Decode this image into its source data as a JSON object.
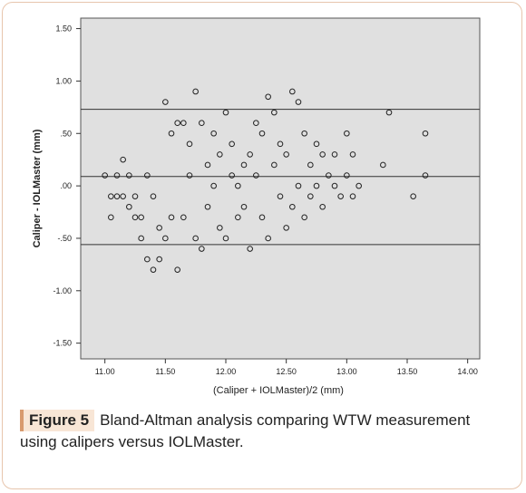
{
  "figure": {
    "label": "Figure 5",
    "caption": "Bland-Altman analysis comparing WTW measurement using calipers versus IOLMaster."
  },
  "colors": {
    "plot_bg": "#e0e0e0",
    "frame_border": "#e7c5ad",
    "caption_tag_bg": "#f8e6d6",
    "marker": "#222222"
  },
  "chart_data": {
    "type": "scatter",
    "xlabel": "(Caliper + IOLMaster)/2 (mm)",
    "ylabel": "Caliper - IOLMaster (mm)",
    "xlim": [
      10.8,
      14.1
    ],
    "ylim": [
      -1.65,
      1.6
    ],
    "x_ticks": [
      11.0,
      11.5,
      12.0,
      12.5,
      13.0,
      13.5,
      14.0
    ],
    "x_tick_labels": [
      "11.00",
      "11.50",
      "12.00",
      "12.50",
      "13.00",
      "13.50",
      "14.00"
    ],
    "y_ticks": [
      1.5,
      1.0,
      0.5,
      0.0,
      -0.5,
      -1.0,
      -1.5
    ],
    "y_tick_labels": [
      "1.50",
      "1.00",
      ".50",
      ".00",
      "-.50",
      "-1.00",
      "-1.50"
    ],
    "reference_lines": [
      {
        "name": "upper limit of agreement",
        "y": 0.73
      },
      {
        "name": "mean difference",
        "y": 0.09
      },
      {
        "name": "lower limit of agreement",
        "y": -0.56
      }
    ],
    "grid": false,
    "marker": "open-circle",
    "series": [
      {
        "points": [
          [
            11.0,
            0.1
          ],
          [
            11.05,
            -0.1
          ],
          [
            11.05,
            -0.3
          ],
          [
            11.1,
            -0.1
          ],
          [
            11.1,
            0.1
          ],
          [
            11.15,
            0.25
          ],
          [
            11.15,
            -0.1
          ],
          [
            11.2,
            -0.2
          ],
          [
            11.2,
            0.1
          ],
          [
            11.25,
            -0.3
          ],
          [
            11.25,
            -0.1
          ],
          [
            11.3,
            -0.5
          ],
          [
            11.3,
            -0.3
          ],
          [
            11.35,
            -0.7
          ],
          [
            11.35,
            0.1
          ],
          [
            11.4,
            -0.8
          ],
          [
            11.4,
            -0.1
          ],
          [
            11.45,
            -0.7
          ],
          [
            11.45,
            -0.4
          ],
          [
            11.5,
            0.8
          ],
          [
            11.5,
            -0.5
          ],
          [
            11.55,
            0.5
          ],
          [
            11.55,
            -0.3
          ],
          [
            11.6,
            0.6
          ],
          [
            11.6,
            -0.8
          ],
          [
            11.65,
            0.6
          ],
          [
            11.65,
            -0.3
          ],
          [
            11.7,
            0.4
          ],
          [
            11.7,
            0.1
          ],
          [
            11.75,
            0.9
          ],
          [
            11.75,
            -0.5
          ],
          [
            11.8,
            -0.6
          ],
          [
            11.8,
            0.6
          ],
          [
            11.85,
            0.2
          ],
          [
            11.85,
            -0.2
          ],
          [
            11.9,
            0.5
          ],
          [
            11.9,
            0.0
          ],
          [
            11.95,
            -0.4
          ],
          [
            11.95,
            0.3
          ],
          [
            12.0,
            0.7
          ],
          [
            12.0,
            -0.5
          ],
          [
            12.05,
            0.4
          ],
          [
            12.05,
            0.1
          ],
          [
            12.1,
            -0.3
          ],
          [
            12.1,
            0.0
          ],
          [
            12.15,
            0.2
          ],
          [
            12.15,
            -0.2
          ],
          [
            12.2,
            -0.6
          ],
          [
            12.2,
            0.3
          ],
          [
            12.25,
            0.6
          ],
          [
            12.25,
            0.1
          ],
          [
            12.3,
            0.5
          ],
          [
            12.3,
            -0.3
          ],
          [
            12.35,
            0.85
          ],
          [
            12.35,
            -0.5
          ],
          [
            12.4,
            0.7
          ],
          [
            12.4,
            0.2
          ],
          [
            12.45,
            -0.1
          ],
          [
            12.45,
            0.4
          ],
          [
            12.5,
            0.3
          ],
          [
            12.5,
            -0.4
          ],
          [
            12.55,
            0.9
          ],
          [
            12.55,
            -0.2
          ],
          [
            12.6,
            0.8
          ],
          [
            12.6,
            0.0
          ],
          [
            12.65,
            0.5
          ],
          [
            12.65,
            -0.3
          ],
          [
            12.7,
            0.2
          ],
          [
            12.7,
            -0.1
          ],
          [
            12.75,
            0.4
          ],
          [
            12.75,
            0.0
          ],
          [
            12.8,
            0.3
          ],
          [
            12.8,
            -0.2
          ],
          [
            12.85,
            0.1
          ],
          [
            12.9,
            0.3
          ],
          [
            12.9,
            0.0
          ],
          [
            12.95,
            -0.1
          ],
          [
            13.0,
            0.5
          ],
          [
            13.0,
            0.1
          ],
          [
            13.05,
            0.3
          ],
          [
            13.05,
            -0.1
          ],
          [
            13.1,
            0.0
          ],
          [
            13.3,
            0.2
          ],
          [
            13.35,
            0.7
          ],
          [
            13.55,
            -0.1
          ],
          [
            13.65,
            0.5
          ],
          [
            13.65,
            0.1
          ]
        ]
      }
    ]
  }
}
